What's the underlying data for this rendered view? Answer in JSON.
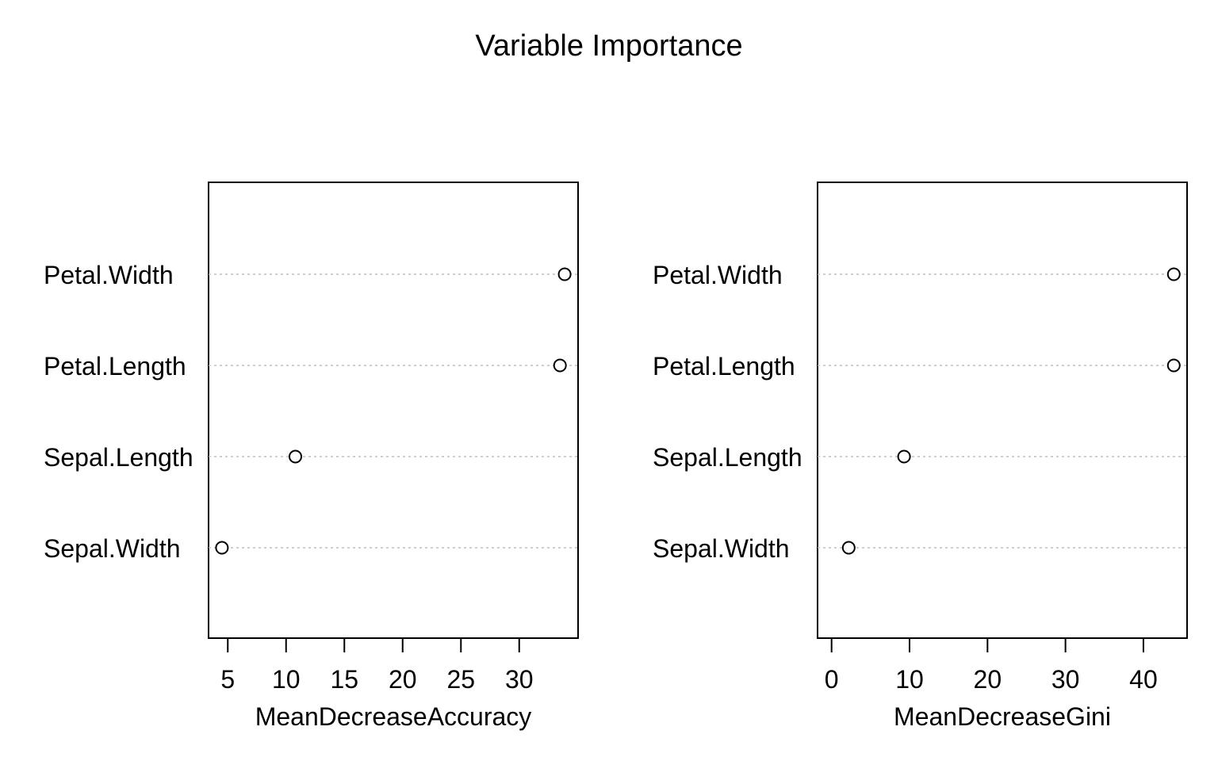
{
  "title": "Variable Importance",
  "chart_data": [
    {
      "type": "scatter",
      "categories": [
        "Petal.Width",
        "Petal.Length",
        "Sepal.Length",
        "Sepal.Width"
      ],
      "values": [
        33.9,
        33.5,
        10.8,
        4.5
      ],
      "xlabel": "MeanDecreaseAccuracy",
      "ticks": [
        5,
        10,
        15,
        20,
        25,
        30
      ],
      "xlim": [
        3.35,
        35.05
      ],
      "grid": "dotted horizontal lines per variable"
    },
    {
      "type": "scatter",
      "categories": [
        "Petal.Width",
        "Petal.Length",
        "Sepal.Length",
        "Sepal.Width"
      ],
      "values": [
        43.9,
        43.9,
        9.3,
        2.2
      ],
      "xlabel": "MeanDecreaseGini",
      "ticks": [
        0,
        10,
        20,
        30,
        40
      ],
      "xlim": [
        -1.8,
        45.6
      ],
      "grid": "dotted horizontal lines per variable"
    }
  ],
  "colors": {
    "axis": "#000000",
    "grid": "#bebebe",
    "point": "#000000"
  }
}
